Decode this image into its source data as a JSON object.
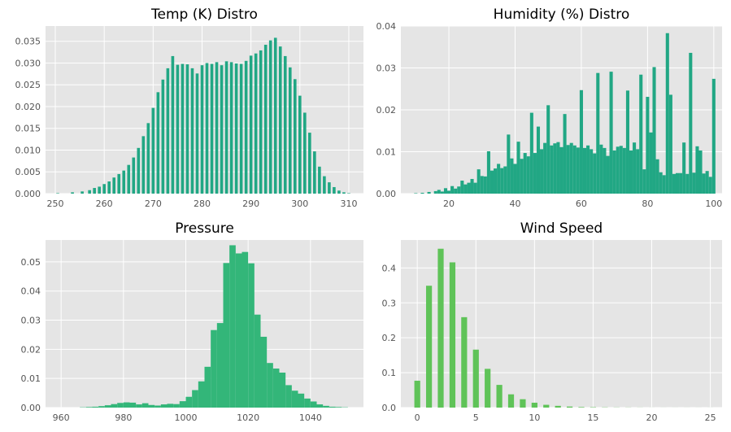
{
  "chart_data": [
    {
      "type": "bar",
      "title": "Temp (K) Distro",
      "xlabel": "",
      "ylabel": "",
      "xlim": [
        248,
        313
      ],
      "ylim": [
        0,
        0.0385
      ],
      "xticks": [
        250,
        260,
        270,
        280,
        290,
        300,
        310
      ],
      "yticks": [
        0.0,
        0.005,
        0.01,
        0.015,
        0.02,
        0.025,
        0.03,
        0.035
      ],
      "ytick_format": 3,
      "bin_width": 0.6,
      "color": "#21a784",
      "grid": true,
      "x": [
        250.5,
        253.5,
        255.5,
        257.0,
        258.0,
        259.0,
        260.0,
        261.0,
        262.0,
        263.0,
        264.0,
        265.0,
        266.0,
        267.0,
        268.0,
        269.0,
        270.0,
        271.0,
        272.0,
        273.0,
        274.0,
        275.0,
        276.0,
        277.0,
        278.0,
        279.0,
        280.0,
        281.0,
        282.0,
        283.0,
        284.0,
        285.0,
        286.0,
        287.0,
        288.0,
        289.0,
        290.0,
        291.0,
        292.0,
        293.0,
        294.0,
        295.0,
        296.0,
        297.0,
        298.0,
        299.0,
        300.0,
        301.0,
        302.0,
        303.0,
        304.0,
        305.0,
        306.0,
        307.0,
        308.0,
        309.0,
        310.0
      ],
      "values": [
        0.0001,
        0.0003,
        0.0005,
        0.0008,
        0.0013,
        0.0016,
        0.0022,
        0.0028,
        0.0037,
        0.0045,
        0.0053,
        0.0066,
        0.0083,
        0.0105,
        0.0132,
        0.0162,
        0.0197,
        0.0233,
        0.0262,
        0.0288,
        0.0316,
        0.0296,
        0.0298,
        0.0297,
        0.0288,
        0.0276,
        0.0295,
        0.03,
        0.0298,
        0.0302,
        0.0295,
        0.0304,
        0.0302,
        0.0299,
        0.0298,
        0.0305,
        0.0317,
        0.0322,
        0.0329,
        0.0342,
        0.0352,
        0.0358,
        0.0338,
        0.0316,
        0.029,
        0.0263,
        0.0225,
        0.0186,
        0.014,
        0.0097,
        0.0062,
        0.004,
        0.0026,
        0.0015,
        0.0007,
        0.0003,
        0.0001
      ]
    },
    {
      "type": "bar",
      "title": "Humidity (%) Distro",
      "xlabel": "",
      "ylabel": "",
      "xlim": [
        5.5,
        102.5
      ],
      "ylim": [
        0,
        0.04
      ],
      "xticks": [
        20,
        40,
        60,
        80,
        100
      ],
      "yticks": [
        0.0,
        0.01,
        0.02,
        0.03,
        0.04
      ],
      "ytick_format": 2,
      "bin_width": 1.0,
      "color": "#21a784",
      "grid": true,
      "x": [
        10,
        12,
        14,
        16,
        17,
        18,
        19,
        20,
        21,
        22,
        23,
        24,
        25,
        26,
        27,
        28,
        29,
        30,
        31,
        32,
        33,
        34,
        35,
        36,
        37,
        38,
        39,
        40,
        41,
        42,
        43,
        44,
        45,
        46,
        47,
        48,
        49,
        50,
        51,
        52,
        53,
        54,
        55,
        56,
        57,
        58,
        59,
        60,
        61,
        62,
        63,
        64,
        65,
        66,
        67,
        68,
        69,
        70,
        71,
        72,
        73,
        74,
        75,
        76,
        77,
        78,
        79,
        80,
        81,
        82,
        83,
        84,
        85,
        86,
        87,
        88,
        89,
        90,
        91,
        92,
        93,
        94,
        95,
        96,
        97,
        98,
        99,
        100
      ],
      "values": [
        0.0001,
        0.0002,
        0.0004,
        0.0006,
        0.0009,
        0.0005,
        0.0013,
        0.0007,
        0.0018,
        0.0012,
        0.0017,
        0.0031,
        0.0022,
        0.0026,
        0.0035,
        0.0026,
        0.0058,
        0.0042,
        0.0041,
        0.0101,
        0.0055,
        0.006,
        0.0071,
        0.0061,
        0.0065,
        0.0141,
        0.0084,
        0.0071,
        0.0124,
        0.0083,
        0.0097,
        0.0089,
        0.0193,
        0.0097,
        0.016,
        0.0106,
        0.0121,
        0.0211,
        0.0115,
        0.012,
        0.0123,
        0.0111,
        0.019,
        0.0116,
        0.0121,
        0.0115,
        0.011,
        0.0247,
        0.0109,
        0.0115,
        0.0106,
        0.0096,
        0.0288,
        0.0117,
        0.0109,
        0.009,
        0.0291,
        0.0103,
        0.0112,
        0.0114,
        0.0109,
        0.0246,
        0.0103,
        0.0122,
        0.0106,
        0.0284,
        0.0058,
        0.0231,
        0.0146,
        0.0302,
        0.0082,
        0.0051,
        0.0044,
        0.0383,
        0.0236,
        0.0047,
        0.0049,
        0.0049,
        0.0122,
        0.0047,
        0.0336,
        0.005,
        0.0113,
        0.0103,
        0.0048,
        0.0054,
        0.004,
        0.0274
      ]
    },
    {
      "type": "bar",
      "title": "Pressure",
      "xlabel": "",
      "ylabel": "",
      "xlim": [
        955,
        1057
      ],
      "ylim": [
        0,
        0.0575
      ],
      "xticks": [
        960,
        980,
        1000,
        1020,
        1040
      ],
      "yticks": [
        0.0,
        0.01,
        0.02,
        0.03,
        0.04,
        0.05
      ],
      "ytick_format": 2,
      "bin_width": 2.0,
      "color": "#33b679",
      "grid": true,
      "x": [
        967,
        969,
        971,
        973,
        975,
        977,
        979,
        981,
        983,
        985,
        987,
        989,
        991,
        993,
        995,
        997,
        999,
        1001,
        1003,
        1005,
        1007,
        1009,
        1011,
        1013,
        1015,
        1017,
        1019,
        1021,
        1023,
        1025,
        1027,
        1029,
        1031,
        1033,
        1035,
        1037,
        1039,
        1041,
        1043,
        1045,
        1047,
        1049,
        1051
      ],
      "values": [
        0.0001,
        0.0002,
        0.0003,
        0.0005,
        0.0008,
        0.0012,
        0.0016,
        0.0018,
        0.0017,
        0.0011,
        0.0015,
        0.0009,
        0.0007,
        0.0011,
        0.0013,
        0.0012,
        0.0022,
        0.0037,
        0.006,
        0.009,
        0.014,
        0.0266,
        0.029,
        0.0496,
        0.0557,
        0.0529,
        0.0534,
        0.0495,
        0.0319,
        0.0243,
        0.0153,
        0.0134,
        0.012,
        0.0077,
        0.0058,
        0.0048,
        0.0031,
        0.0021,
        0.0011,
        0.0006,
        0.0003,
        0.0002,
        0.0001
      ]
    },
    {
      "type": "bar",
      "title": "Wind Speed",
      "xlabel": "",
      "ylabel": "",
      "xlim": [
        -1.4,
        26.0
      ],
      "ylim": [
        0,
        0.48
      ],
      "xticks": [
        0,
        5,
        10,
        15,
        20,
        25
      ],
      "yticks": [
        0.0,
        0.1,
        0.2,
        0.3,
        0.4
      ],
      "ytick_format": 1,
      "bin_width": 0.5,
      "color": "#5fc358",
      "grid": true,
      "x": [
        0,
        1,
        2,
        3,
        4,
        5,
        6,
        7,
        8,
        9,
        10,
        11,
        12,
        13,
        14,
        15,
        16,
        17,
        18,
        19,
        20,
        21,
        22,
        23,
        24,
        25
      ],
      "values": [
        0.077,
        0.349,
        0.455,
        0.416,
        0.259,
        0.166,
        0.111,
        0.065,
        0.038,
        0.024,
        0.014,
        0.008,
        0.005,
        0.003,
        0.0015,
        0.001,
        0.0006,
        0.0004,
        0.0003,
        0.0002,
        0.0001,
        0.0001,
        0.0001,
        0.0001,
        0.0001,
        0.0001
      ]
    }
  ]
}
